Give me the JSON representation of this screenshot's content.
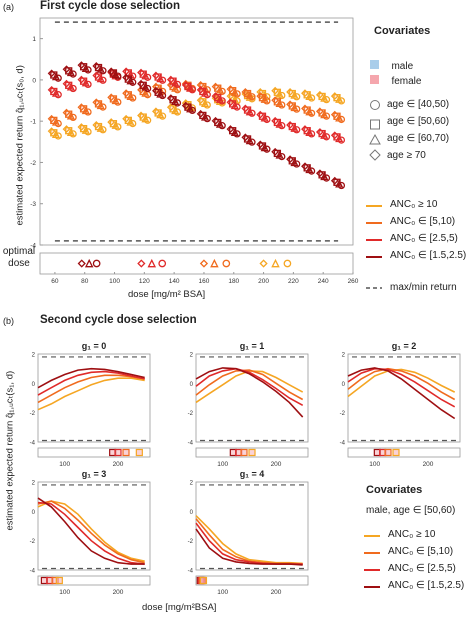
{
  "panel_a": {
    "tag": "(a)",
    "title": "First cycle dose selection",
    "ylabel": "estimated expected return  q̂₁,ᵤcₜ(s₀, d)",
    "optimal_label": "optimal\ndose",
    "xlabel": "dose [mg/m² BSA]",
    "legend": {
      "covariates_title": "Covariates",
      "sex": [
        "male",
        "female"
      ],
      "age": [
        "age ∈ [40,50)",
        "age ∈ [50,60)",
        "age ∈ [60,70)",
        "age ≥ 70"
      ],
      "anc": [
        "ANC₀ ≥ 10",
        "ANC₀ ∈ [5,10)",
        "ANC₀ ∈ [2.5,5)",
        "ANC₀ ∈ [1.5,2.5)"
      ],
      "maxmin": "max/min return"
    }
  },
  "panel_b": {
    "tag": "(b)",
    "title": "Second cycle dose selection",
    "ylabel": "estimated expected return  q̂₁,ᵤcₜ(s₁, d)",
    "xlabel": "dose [mg/m²BSA]",
    "legend": {
      "covariates_title": "Covariates",
      "subtitle": "male, age ∈ [50,60)",
      "anc": [
        "ANC₀ ≥ 10",
        "ANC₀ ∈ [5,10)",
        "ANC₀ ∈ [2.5,5)",
        "ANC₀ ∈ [1.5,2.5)"
      ]
    }
  },
  "colors": {
    "anc": [
      "#f5a623",
      "#f06b1e",
      "#e02a2a",
      "#9e0f12"
    ],
    "male": "#a9cdea",
    "female": "#f5a6ad",
    "dash": "#555555"
  },
  "chart_data": [
    {
      "type": "scatter",
      "title": "First cycle dose selection",
      "xlabel": "dose [mg/m² BSA]",
      "ylabel": "estimated expected return",
      "xlim": [
        50,
        260
      ],
      "ylim": [
        -4,
        1.5
      ],
      "xticks": [
        60,
        80,
        100,
        120,
        140,
        160,
        180,
        200,
        220,
        240,
        260
      ],
      "yticks": [
        1,
        0,
        -1,
        -2,
        -3,
        -4
      ],
      "max_return": 1.4,
      "min_return": -3.9,
      "series": [
        {
          "name": "ANC₀ ≥ 10",
          "x": [
            60,
            70,
            80,
            90,
            100,
            110,
            120,
            130,
            140,
            150,
            160,
            170,
            180,
            190,
            200,
            210,
            220,
            230,
            240,
            250
          ],
          "y": [
            -1.3,
            -1.25,
            -1.2,
            -1.15,
            -1.08,
            -1.0,
            -0.92,
            -0.82,
            -0.72,
            -0.62,
            -0.55,
            -0.5,
            -0.45,
            -0.4,
            -0.35,
            -0.32,
            -0.35,
            -0.38,
            -0.42,
            -0.45
          ]
        },
        {
          "name": "ANC₀ ∈ [5,10)",
          "x": [
            60,
            70,
            80,
            90,
            100,
            110,
            120,
            130,
            140,
            150,
            160,
            170,
            180,
            190,
            200,
            210,
            220,
            230,
            240,
            250
          ],
          "y": [
            -1.0,
            -0.85,
            -0.72,
            -0.6,
            -0.48,
            -0.38,
            -0.3,
            -0.22,
            -0.18,
            -0.15,
            -0.18,
            -0.22,
            -0.28,
            -0.35,
            -0.45,
            -0.55,
            -0.65,
            -0.75,
            -0.82,
            -0.9
          ]
        },
        {
          "name": "ANC₀ ∈ [2.5,5)",
          "x": [
            60,
            70,
            80,
            90,
            100,
            110,
            120,
            130,
            140,
            150,
            160,
            170,
            180,
            190,
            200,
            210,
            220,
            230,
            240,
            250
          ],
          "y": [
            -0.3,
            -0.15,
            -0.05,
            0.05,
            0.12,
            0.15,
            0.12,
            0.05,
            -0.05,
            -0.18,
            -0.3,
            -0.45,
            -0.6,
            -0.75,
            -0.9,
            -1.05,
            -1.15,
            -1.25,
            -1.32,
            -1.4
          ]
        },
        {
          "name": "ANC₀ ∈ [1.5,2.5)",
          "x": [
            60,
            70,
            80,
            90,
            100,
            110,
            120,
            130,
            140,
            150,
            160,
            170,
            180,
            190,
            200,
            210,
            220,
            230,
            240,
            250
          ],
          "y": [
            0.1,
            0.2,
            0.3,
            0.28,
            0.15,
            0.0,
            -0.15,
            -0.32,
            -0.5,
            -0.68,
            -0.88,
            -1.05,
            -1.25,
            -1.45,
            -1.62,
            -1.8,
            -1.98,
            -2.15,
            -2.32,
            -2.5
          ]
        }
      ],
      "optimal_dose": {
        "ANC₀ ∈ [1.5,2.5)": [
          78,
          83,
          88
        ],
        "ANC₀ ∈ [2.5,5)": [
          118,
          125,
          132
        ],
        "ANC₀ ∈ [5,10)": [
          160,
          167,
          175
        ],
        "ANC₀ ≥ 10": [
          200,
          208,
          216
        ]
      }
    },
    {
      "type": "line",
      "title": "Second cycle dose selection",
      "xlabel": "dose [mg/m²BSA]",
      "ylabel": "estimated expected return",
      "xlim": [
        50,
        260
      ],
      "ylim": [
        -4,
        2
      ],
      "subplots": [
        {
          "title": "g₁ = 0",
          "x": [
            50,
            75,
            100,
            125,
            150,
            175,
            200,
            225,
            250
          ],
          "series": [
            {
              "name": "ANC₀ ≥ 10",
              "y": [
                -1.8,
                -1.4,
                -0.9,
                -0.5,
                -0.1,
                0.2,
                0.35,
                0.35,
                0.2
              ]
            },
            {
              "name": "ANC₀ ∈ [5,10)",
              "y": [
                -1.3,
                -0.8,
                -0.3,
                0.1,
                0.4,
                0.55,
                0.55,
                0.45,
                0.3
              ]
            },
            {
              "name": "ANC₀ ∈ [2.5,5)",
              "y": [
                -0.8,
                -0.3,
                0.2,
                0.55,
                0.75,
                0.8,
                0.7,
                0.5,
                0.3
              ]
            },
            {
              "name": "ANC₀ ∈ [1.5,2.5)",
              "y": [
                -0.3,
                0.2,
                0.6,
                0.9,
                1.0,
                0.95,
                0.8,
                0.6,
                0.4
              ]
            }
          ],
          "optimal": [
            190,
            200,
            215,
            240
          ]
        },
        {
          "title": "g₁ = 1",
          "x": [
            50,
            75,
            100,
            125,
            150,
            175,
            200,
            225,
            250
          ],
          "series": [
            {
              "name": "ANC₀ ≥ 10",
              "y": [
                -1.3,
                -0.7,
                -0.1,
                0.5,
                0.85,
                0.8,
                0.4,
                -0.1,
                -0.6
              ]
            },
            {
              "name": "ANC₀ ∈ [5,10)",
              "y": [
                -0.8,
                -0.1,
                0.5,
                0.85,
                0.9,
                0.6,
                0.0,
                -0.6,
                -1.1
              ]
            },
            {
              "name": "ANC₀ ∈ [2.5,5)",
              "y": [
                -0.2,
                0.5,
                0.85,
                1.0,
                0.75,
                0.25,
                -0.35,
                -1.0,
                -1.5
              ]
            },
            {
              "name": "ANC₀ ∈ [1.5,2.5)",
              "y": [
                0.3,
                0.8,
                1.05,
                1.0,
                0.65,
                0.1,
                -0.55,
                -1.3,
                -2.3
              ]
            }
          ],
          "optimal": [
            120,
            130,
            140,
            155
          ]
        },
        {
          "title": "g₁ = 2",
          "x": [
            50,
            75,
            100,
            125,
            150,
            175,
            200,
            225,
            250
          ],
          "series": [
            {
              "name": "ANC₀ ≥ 10",
              "y": [
                -0.9,
                -0.2,
                0.5,
                0.85,
                0.95,
                0.75,
                0.35,
                -0.15,
                -0.6
              ]
            },
            {
              "name": "ANC₀ ∈ [5,10)",
              "y": [
                -0.4,
                0.3,
                0.8,
                1.0,
                0.85,
                0.5,
                0.0,
                -0.6,
                -1.1
              ]
            },
            {
              "name": "ANC₀ ∈ [2.5,5)",
              "y": [
                0.1,
                0.7,
                1.0,
                0.95,
                0.6,
                0.1,
                -0.5,
                -1.1,
                -1.6
              ]
            },
            {
              "name": "ANC₀ ∈ [1.5,2.5)",
              "y": [
                0.5,
                0.9,
                1.05,
                0.85,
                0.3,
                -0.4,
                -1.1,
                -1.8,
                -2.4
              ]
            }
          ],
          "optimal": [
            105,
            115,
            125,
            140
          ]
        },
        {
          "title": "g₁ = 3",
          "x": [
            50,
            75,
            100,
            125,
            150,
            175,
            200,
            225,
            250
          ],
          "series": [
            {
              "name": "ANC₀ ≥ 10",
              "y": [
                0.3,
                0.7,
                0.5,
                -0.2,
                -1.2,
                -2.1,
                -2.8,
                -3.2,
                -3.4
              ]
            },
            {
              "name": "ANC₀ ∈ [5,10)",
              "y": [
                0.5,
                0.7,
                0.2,
                -0.6,
                -1.5,
                -2.3,
                -2.9,
                -3.3,
                -3.5
              ]
            },
            {
              "name": "ANC₀ ∈ [2.5,5)",
              "y": [
                0.6,
                0.5,
                -0.2,
                -1.1,
                -2.0,
                -2.7,
                -3.2,
                -3.5,
                -3.6
              ]
            },
            {
              "name": "ANC₀ ∈ [1.5,2.5)",
              "y": [
                0.9,
                0.3,
                -0.7,
                -1.8,
                -2.7,
                -3.2,
                -3.5,
                -3.6,
                -3.6
              ]
            }
          ],
          "optimal": [
            62,
            72,
            82,
            90
          ]
        },
        {
          "title": "g₁ = 4",
          "x": [
            50,
            75,
            100,
            125,
            150,
            175,
            200,
            225,
            250
          ],
          "series": [
            {
              "name": "ANC₀ ≥ 10",
              "y": [
                -0.3,
                -1.2,
                -2.2,
                -2.9,
                -3.3,
                -3.4,
                -3.5,
                -3.5,
                -3.55
              ]
            },
            {
              "name": "ANC₀ ∈ [5,10)",
              "y": [
                -0.5,
                -1.6,
                -2.6,
                -3.1,
                -3.4,
                -3.5,
                -3.55,
                -3.55,
                -3.6
              ]
            },
            {
              "name": "ANC₀ ∈ [2.5,5)",
              "y": [
                -0.8,
                -2.0,
                -2.9,
                -3.3,
                -3.45,
                -3.55,
                -3.6,
                -3.6,
                -3.6
              ]
            },
            {
              "name": "ANC₀ ∈ [1.5,2.5)",
              "y": [
                -1.2,
                -2.5,
                -3.2,
                -3.45,
                -3.55,
                -3.6,
                -3.6,
                -3.6,
                -3.65
              ]
            }
          ],
          "optimal": [
            58,
            60,
            62,
            64
          ]
        }
      ]
    }
  ]
}
